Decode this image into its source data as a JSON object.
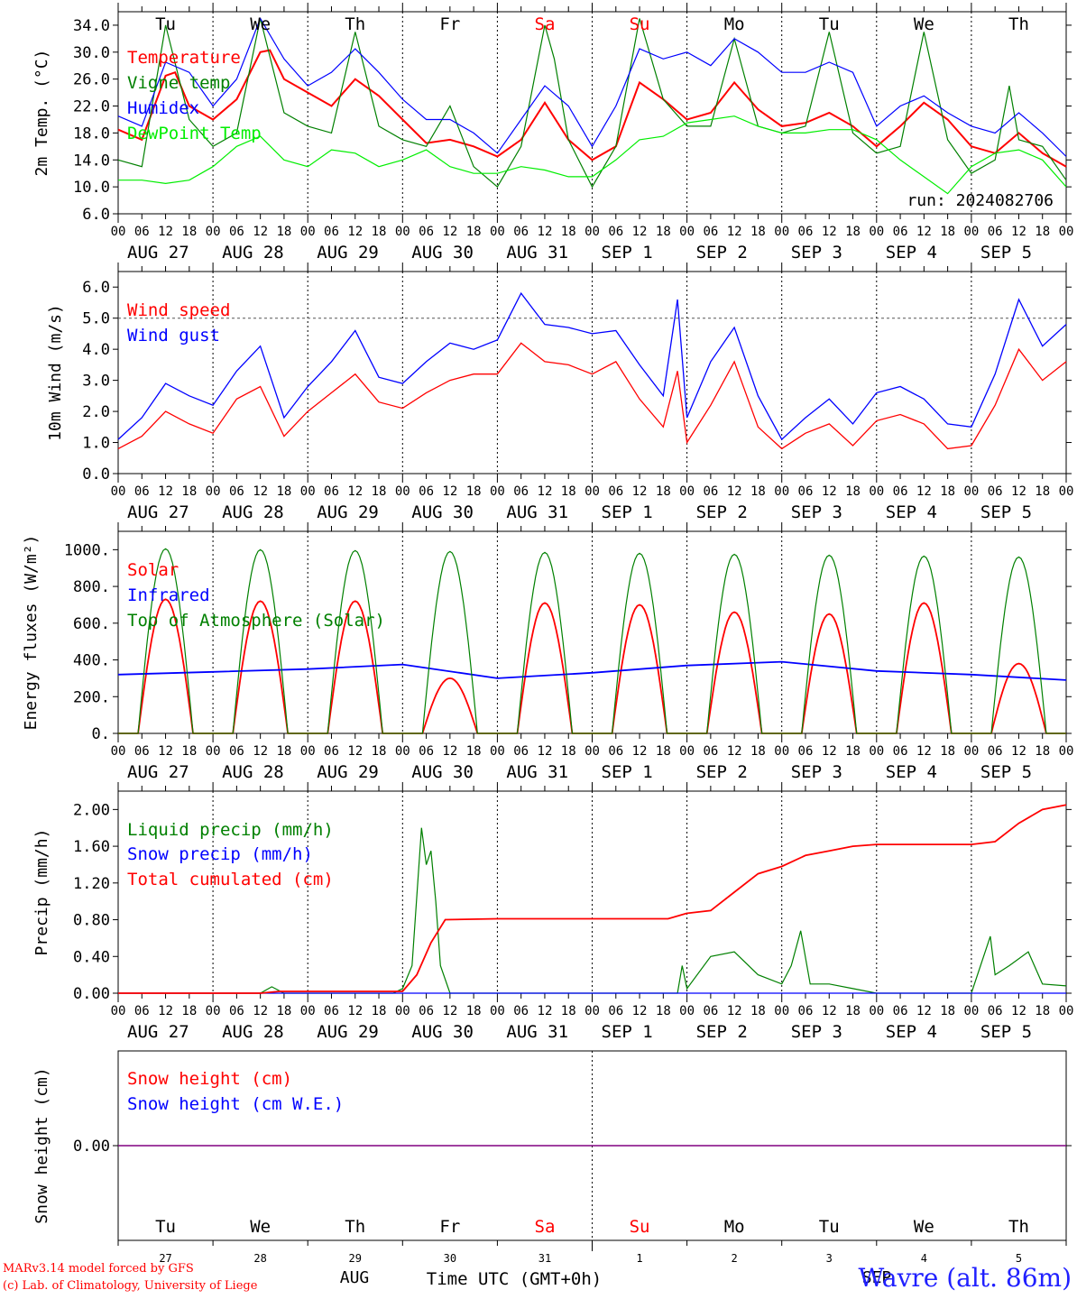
{
  "run_label": "run: 2024082706",
  "credits": {
    "line1": "MARv3.14 model forced by GFS",
    "line2": "(c) Lab. of Climatology, University of Liege"
  },
  "station": "Wavre (alt. 86m)",
  "colors": {
    "red": "#ff0000",
    "green": "#008000",
    "blue": "#0000ff",
    "lightgreen": "#00ee00",
    "purple": "#800080"
  },
  "axis": {
    "hour_ticks": [
      "00",
      "06",
      "12",
      "18"
    ],
    "final_tick": "00",
    "dates": [
      "AUG 27",
      "AUG 28",
      "AUG 29",
      "AUG 30",
      "AUG 31",
      "SEP  1",
      "SEP  2",
      "SEP  3",
      "SEP  4",
      "SEP  5"
    ],
    "weekdays": [
      "Tu",
      "We",
      "Th",
      "Fr",
      "Sa",
      "Su",
      "Mo",
      "Tu",
      "We",
      "Th"
    ],
    "weekday_colors": [
      "#000000",
      "#000000",
      "#000000",
      "#000000",
      "#ff0000",
      "#ff0000",
      "#000000",
      "#000000",
      "#000000",
      "#000000"
    ],
    "day_numbers": [
      "27",
      "28",
      "29",
      "30",
      "31",
      "1",
      "2",
      "3",
      "4",
      "5"
    ],
    "month_left": "AUG",
    "month_right": "SEP",
    "bottom_label": "Time UTC (GMT+0h)"
  },
  "chart_data": [
    {
      "type": "line",
      "ylabel": "2m Temp. (°C)",
      "ylim": [
        6,
        36
      ],
      "yticks": [
        "6.0",
        "10.0",
        "14.0",
        "18.0",
        "22.0",
        "26.0",
        "30.0",
        "34.0"
      ],
      "x_unit": "days since AUG 27 00 UTC",
      "series": [
        {
          "name": "Temperature",
          "color": "#ff0000",
          "x": [
            0,
            0.25,
            0.5,
            0.6,
            0.75,
            1,
            1.25,
            1.5,
            1.6,
            1.75,
            2,
            2.25,
            2.5,
            2.75,
            3,
            3.25,
            3.5,
            3.75,
            4,
            4.25,
            4.5,
            4.75,
            5,
            5.25,
            5.5,
            5.75,
            6,
            6.25,
            6.5,
            6.75,
            7,
            7.25,
            7.5,
            7.75,
            8,
            8.25,
            8.5,
            8.75,
            9,
            9.25,
            9.5,
            9.75,
            10
          ],
          "y": [
            18.5,
            17,
            26.5,
            27,
            22,
            20,
            23,
            30,
            30.3,
            26,
            24,
            22,
            26,
            23.5,
            20,
            16.5,
            17,
            16,
            14.5,
            17,
            22.5,
            17,
            14,
            16,
            25.5,
            23,
            20,
            21,
            25.5,
            21.5,
            19,
            19.5,
            21,
            19,
            16,
            19,
            22.5,
            20,
            16,
            15,
            18,
            15,
            13
          ]
        },
        {
          "name": "Vigne temp",
          "color": "#008000",
          "x": [
            0,
            0.25,
            0.5,
            0.75,
            1,
            1.25,
            1.5,
            1.75,
            2,
            2.25,
            2.5,
            2.75,
            3,
            3.25,
            3.5,
            3.75,
            4,
            4.25,
            4.5,
            4.6,
            4.75,
            5,
            5.25,
            5.5,
            5.75,
            6,
            6.25,
            6.5,
            6.75,
            7,
            7.25,
            7.5,
            7.6,
            7.75,
            8,
            8.25,
            8.5,
            8.75,
            9,
            9.25,
            9.4,
            9.5,
            9.75,
            10
          ],
          "y": [
            14,
            13,
            34,
            20,
            16,
            18,
            35,
            21,
            19,
            18,
            33,
            19,
            17,
            16,
            22,
            13,
            10,
            16,
            34,
            29,
            17,
            10,
            16,
            35,
            23,
            19,
            19,
            32,
            19,
            18,
            19,
            33,
            27,
            18,
            15,
            16,
            33,
            17,
            12,
            14,
            25,
            17,
            16,
            11
          ]
        },
        {
          "name": "Humidex",
          "color": "#0000ff",
          "x": [
            0,
            0.25,
            0.5,
            0.75,
            1,
            1.25,
            1.5,
            1.75,
            2,
            2.25,
            2.5,
            2.75,
            3,
            3.25,
            3.5,
            3.75,
            4,
            4.25,
            4.5,
            4.75,
            5,
            5.25,
            5.5,
            5.75,
            6,
            6.25,
            6.5,
            6.75,
            7,
            7.25,
            7.5,
            7.75,
            8,
            8.25,
            8.5,
            8.75,
            9,
            9.25,
            9.5,
            9.75,
            10
          ],
          "y": [
            20.5,
            19,
            28.5,
            27,
            22,
            26,
            35,
            29,
            25,
            27,
            30.5,
            27,
            23,
            20,
            20,
            18,
            15,
            20,
            25,
            22,
            16,
            22,
            30.5,
            29,
            30,
            28,
            32,
            30,
            27,
            27,
            28.5,
            27,
            19,
            22,
            23.5,
            21,
            19,
            18,
            21,
            18,
            14.5
          ]
        },
        {
          "name": "DewPoint Temp",
          "color": "#00ee00",
          "x": [
            0,
            0.25,
            0.5,
            0.75,
            1,
            1.25,
            1.5,
            1.75,
            2,
            2.25,
            2.5,
            2.75,
            3,
            3.25,
            3.5,
            3.75,
            4,
            4.25,
            4.5,
            4.75,
            5,
            5.25,
            5.5,
            5.75,
            6,
            6.25,
            6.5,
            6.75,
            7,
            7.25,
            7.5,
            7.75,
            8,
            8.25,
            8.5,
            8.75,
            9,
            9.25,
            9.5,
            9.75,
            10
          ],
          "y": [
            11,
            11,
            10.5,
            11,
            13,
            16,
            17.5,
            14,
            13,
            15.5,
            15,
            13,
            14,
            15.5,
            13,
            12,
            12,
            13,
            12.5,
            11.5,
            11.5,
            14,
            17,
            17.5,
            19.5,
            20,
            20.5,
            19,
            18,
            18,
            18.5,
            18.5,
            17,
            14,
            11.5,
            9,
            13,
            15,
            15.5,
            14,
            10
          ]
        }
      ]
    },
    {
      "type": "line",
      "ylabel": "10m Wind (m/s)",
      "ylim": [
        0,
        6.5
      ],
      "yticks": [
        "0.0",
        "1.0",
        "2.0",
        "3.0",
        "4.0",
        "5.0",
        "6.0"
      ],
      "reference_line": 5.0,
      "x_unit": "days since AUG 27 00 UTC",
      "series": [
        {
          "name": "Wind speed",
          "color": "#ff0000",
          "x": [
            0,
            0.25,
            0.5,
            0.75,
            1,
            1.25,
            1.5,
            1.75,
            2,
            2.25,
            2.5,
            2.75,
            3,
            3.25,
            3.5,
            3.75,
            4,
            4.25,
            4.5,
            4.75,
            5,
            5.25,
            5.5,
            5.75,
            5.9,
            6,
            6.25,
            6.5,
            6.75,
            7,
            7.25,
            7.5,
            7.75,
            8,
            8.25,
            8.5,
            8.75,
            9,
            9.25,
            9.5,
            9.75,
            10
          ],
          "y": [
            0.8,
            1.2,
            2.0,
            1.6,
            1.3,
            2.4,
            2.8,
            1.2,
            2.0,
            2.6,
            3.2,
            2.3,
            2.1,
            2.6,
            3.0,
            3.2,
            3.2,
            4.2,
            3.6,
            3.5,
            3.2,
            3.6,
            2.4,
            1.5,
            3.3,
            1.0,
            2.2,
            3.6,
            1.5,
            0.8,
            1.3,
            1.6,
            0.9,
            1.7,
            1.9,
            1.6,
            0.8,
            0.9,
            2.2,
            4.0,
            3.0,
            3.6
          ]
        },
        {
          "name": "Wind gust",
          "color": "#0000ff",
          "x": [
            0,
            0.25,
            0.5,
            0.75,
            1,
            1.25,
            1.5,
            1.75,
            2,
            2.25,
            2.5,
            2.75,
            3,
            3.25,
            3.5,
            3.75,
            4,
            4.25,
            4.5,
            4.75,
            5,
            5.25,
            5.5,
            5.75,
            5.9,
            6,
            6.25,
            6.5,
            6.75,
            7,
            7.25,
            7.5,
            7.75,
            8,
            8.25,
            8.5,
            8.75,
            9,
            9.25,
            9.5,
            9.75,
            10
          ],
          "y": [
            1.1,
            1.8,
            2.9,
            2.5,
            2.2,
            3.3,
            4.1,
            1.8,
            2.8,
            3.6,
            4.6,
            3.1,
            2.9,
            3.6,
            4.2,
            4.0,
            4.3,
            5.8,
            4.8,
            4.7,
            4.5,
            4.6,
            3.5,
            2.5,
            5.6,
            1.8,
            3.6,
            4.7,
            2.5,
            1.1,
            1.8,
            2.4,
            1.6,
            2.6,
            2.8,
            2.4,
            1.6,
            1.5,
            3.2,
            5.6,
            4.1,
            4.8
          ]
        }
      ]
    },
    {
      "type": "line",
      "ylabel": "Energy fluxes (W/m²)",
      "ylim": [
        0,
        1100
      ],
      "yticks": [
        "0.",
        "200.",
        "400.",
        "600.",
        "800.",
        "1000."
      ],
      "x_unit": "days since AUG 27 00 UTC",
      "daylight": {
        "sunrise_day_fraction": 0.21,
        "sunset_day_fraction": 0.79
      },
      "series": [
        {
          "name": "Solar",
          "color": "#ff0000",
          "daily_peak": [
            730,
            720,
            720,
            300,
            710,
            700,
            660,
            650,
            710,
            380
          ]
        },
        {
          "name": "Infrared",
          "color": "#0000ff",
          "x": [
            0,
            1,
            2,
            3,
            4,
            5,
            6,
            7,
            8,
            9,
            10
          ],
          "y": [
            320,
            335,
            350,
            375,
            300,
            330,
            370,
            390,
            340,
            320,
            290
          ]
        },
        {
          "name": "Top of Atmosphere (Solar)",
          "color": "#008000",
          "daily_peak": [
            1005,
            1000,
            995,
            990,
            985,
            980,
            975,
            970,
            965,
            960
          ]
        }
      ]
    },
    {
      "type": "line",
      "ylabel": "Precip (mm/h)",
      "ylim": [
        0,
        2.2
      ],
      "yticks": [
        "0.00",
        "0.40",
        "0.80",
        "1.20",
        "1.60",
        "2.00"
      ],
      "x_unit": "days since AUG 27 00 UTC",
      "series": [
        {
          "name": "Liquid precip (mm/h)",
          "color": "#008000",
          "x": [
            0,
            1.5,
            1.62,
            1.75,
            2.9,
            3.0,
            3.1,
            3.2,
            3.25,
            3.3,
            3.35,
            3.4,
            3.5,
            3.6,
            5.9,
            5.95,
            6.0,
            6.25,
            6.5,
            6.75,
            7.0,
            7.1,
            7.2,
            7.3,
            7.5,
            7.75,
            8.0,
            9.0,
            9.2,
            9.25,
            9.4,
            9.6,
            9.75,
            10
          ],
          "y": [
            0,
            0,
            0.07,
            0,
            0,
            0.05,
            0.3,
            1.8,
            1.4,
            1.55,
            1.0,
            0.3,
            0,
            0,
            0,
            0.3,
            0.05,
            0.4,
            0.45,
            0.2,
            0.1,
            0.3,
            0.68,
            0.1,
            0.1,
            0.05,
            0,
            0,
            0.62,
            0.2,
            0.3,
            0.45,
            0.1,
            0.08
          ]
        },
        {
          "name": "Snow precip (mm/h)",
          "color": "#0000ff",
          "x": [
            0,
            10
          ],
          "y": [
            0,
            0
          ]
        },
        {
          "name": "Total cumulated (cm)",
          "color": "#ff0000",
          "x": [
            0,
            1.5,
            1.7,
            3.0,
            3.15,
            3.3,
            3.45,
            4.0,
            5.8,
            6.0,
            6.25,
            6.5,
            6.75,
            7.0,
            7.25,
            7.5,
            7.75,
            8,
            9.0,
            9.25,
            9.5,
            9.75,
            10
          ],
          "y": [
            0,
            0,
            0.02,
            0.02,
            0.2,
            0.55,
            0.8,
            0.81,
            0.81,
            0.87,
            0.9,
            1.1,
            1.3,
            1.38,
            1.5,
            1.55,
            1.6,
            1.62,
            1.62,
            1.65,
            1.85,
            2.0,
            2.05
          ]
        }
      ]
    },
    {
      "type": "line",
      "ylabel": "Snow height (cm)",
      "ylim": [
        -1,
        1
      ],
      "yticks": [
        "0.00"
      ],
      "x_unit": "days since AUG 27 00 UTC",
      "series": [
        {
          "name": "Snow height (cm)",
          "color": "#ff0000",
          "x": [
            0,
            10
          ],
          "y": [
            0,
            0
          ]
        },
        {
          "name": "Snow height (cm W.E.)",
          "color": "#0000ff",
          "x": [
            0,
            10
          ],
          "y": [
            0,
            0
          ]
        }
      ]
    }
  ]
}
